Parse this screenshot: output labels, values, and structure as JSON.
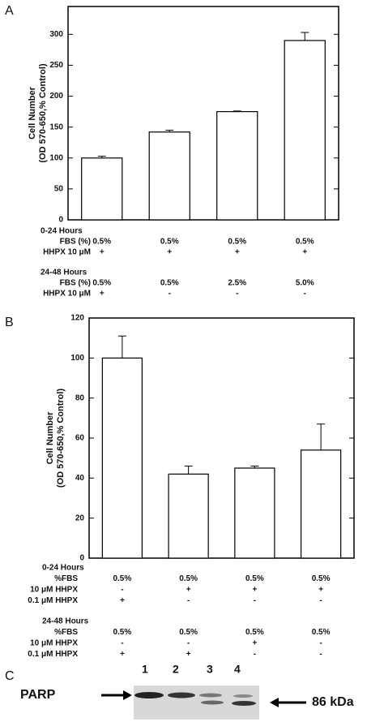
{
  "chart_data": [
    {
      "type": "bar",
      "panel": "A",
      "y_label": [
        "Cell Number",
        "(OD 570-650,% Control)"
      ],
      "values": [
        100,
        142,
        175,
        290
      ],
      "errors": [
        3,
        3,
        1,
        13
      ],
      "color": "#ffffff",
      "ylim": [
        0,
        345
      ],
      "yticks": [
        0,
        50,
        100,
        150,
        200,
        250,
        300
      ],
      "conditions": [
        {
          "label": "0-24 Hours",
          "rows": [
            {
              "label": "FBS (%)",
              "values": [
                "0.5%",
                "0.5%",
                "0.5%",
                "0.5%"
              ]
            },
            {
              "label": "HHPX 10 μM",
              "values": [
                "+",
                "+",
                "+",
                "+"
              ]
            }
          ]
        },
        {
          "label": "24-48 Hours",
          "rows": [
            {
              "label": "FBS (%)",
              "values": [
                "0.5%",
                "0.5%",
                "2.5%",
                "5.0%"
              ]
            },
            {
              "label": "HHPX 10 μM",
              "values": [
                "+",
                "-",
                "-",
                "-"
              ]
            }
          ]
        }
      ]
    },
    {
      "type": "bar",
      "panel": "B",
      "y_label": [
        "Cell Number",
        "(OD 570-650,% Control)"
      ],
      "values": [
        100,
        42,
        45,
        54
      ],
      "errors": [
        11,
        4,
        1,
        13
      ],
      "color": "#ffffff",
      "ylim": [
        0,
        120
      ],
      "yticks": [
        0,
        20,
        40,
        60,
        80,
        100,
        120
      ],
      "conditions": [
        {
          "label": "0-24 Hours",
          "rows": [
            {
              "label": "%FBS",
              "values": [
                "0.5%",
                "0.5%",
                "0.5%",
                "0.5%"
              ]
            },
            {
              "label": "10 μM HHPX",
              "values": [
                "-",
                "+",
                "+",
                "+"
              ]
            },
            {
              "label": "0.1 μM HHPX",
              "values": [
                "+",
                "-",
                "-",
                "-"
              ]
            }
          ]
        },
        {
          "label": "24-48 Hours",
          "rows": [
            {
              "label": "%FBS",
              "values": [
                "0.5%",
                "0.5%",
                "0.5%",
                "0.5%"
              ]
            },
            {
              "label": "10 μM HHPX",
              "values": [
                "-",
                "-",
                "+",
                "-"
              ]
            },
            {
              "label": "0.1 μM HHPX",
              "values": [
                "+",
                "+",
                "-",
                "-"
              ]
            }
          ]
        }
      ]
    }
  ],
  "panel_c": {
    "panel": "C",
    "lanes": [
      "1",
      "2",
      "3",
      "4"
    ],
    "band_label": "PARP",
    "size_label": "86 kDa"
  }
}
